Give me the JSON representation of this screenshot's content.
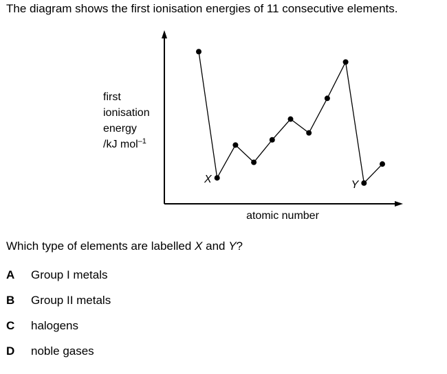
{
  "header": {
    "title": "The diagram shows the first ionisation energies of 11 consecutive elements."
  },
  "chart_data": {
    "type": "line",
    "ylabel": [
      "first",
      "ionisation",
      "energy"
    ],
    "yunit": "/kJ mol",
    "yunit_exponent": "–1",
    "xlabel": "atomic number",
    "categories": [
      null,
      null,
      null,
      null,
      null,
      null,
      null,
      null,
      null,
      null,
      null
    ],
    "values": [
      88,
      15,
      34,
      24,
      37,
      49,
      41,
      61,
      82,
      12,
      23
    ],
    "ylim": [
      0,
      100
    ],
    "color": "#000000",
    "annotations": [
      {
        "text": "X",
        "point": 1
      },
      {
        "text": "Y",
        "point": 9
      }
    ]
  },
  "question": {
    "parts": [
      "Which type of elements are labelled ",
      "X",
      " and ",
      "Y",
      "?"
    ],
    "options": [
      {
        "letter": "A",
        "text": "Group I metals"
      },
      {
        "letter": "B",
        "text": "Group II metals"
      },
      {
        "letter": "C",
        "text": "halogens"
      },
      {
        "letter": "D",
        "text": "noble gases"
      }
    ]
  }
}
